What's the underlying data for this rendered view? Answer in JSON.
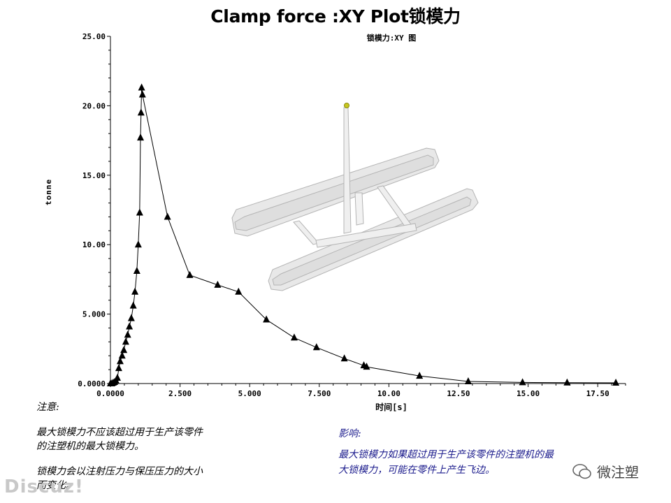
{
  "title": "Clamp force :XY Plot锁模力",
  "chart_data": {
    "type": "line",
    "subtitle": "锁模力:XY 图",
    "xlabel": "时间[s]",
    "ylabel": "tonne",
    "xlim": [
      0,
      18.5
    ],
    "ylim": [
      0,
      25
    ],
    "x_ticks": [
      0,
      2.5,
      5,
      7.5,
      10,
      12.5,
      15,
      17.5
    ],
    "x_tick_labels": [
      "0.0000",
      "2.500",
      "5.000",
      "7.500",
      "10.00",
      "12.50",
      "15.00",
      "17.50"
    ],
    "y_ticks": [
      0,
      5,
      10,
      15,
      20,
      25
    ],
    "y_tick_labels": [
      "0.0000",
      "5.000",
      "10.00",
      "15.00",
      "20.00",
      "25.00"
    ],
    "grid": false,
    "series": [
      {
        "marker": "triangle",
        "x": [
          0.0,
          0.05,
          0.1,
          0.15,
          0.2,
          0.25,
          0.3,
          0.35,
          0.42,
          0.48,
          0.55,
          0.62,
          0.68,
          0.75,
          0.82,
          0.88,
          0.95,
          1.0,
          1.05,
          1.08,
          1.1,
          1.12,
          1.15,
          2.05,
          2.85,
          3.85,
          4.6,
          5.6,
          6.6,
          7.4,
          8.4,
          9.1,
          9.2,
          11.1,
          12.85,
          14.8,
          16.4,
          18.15
        ],
        "y": [
          0.0,
          0.0,
          0.05,
          0.1,
          0.2,
          0.4,
          1.1,
          1.6,
          2.0,
          2.4,
          3.0,
          3.5,
          4.1,
          4.7,
          5.6,
          6.6,
          8.1,
          10.0,
          12.3,
          17.7,
          19.5,
          21.3,
          20.8,
          12.0,
          7.8,
          7.1,
          6.6,
          4.6,
          3.3,
          2.6,
          1.8,
          1.3,
          1.2,
          0.55,
          0.15,
          0.08,
          0.06,
          0.05
        ]
      }
    ]
  },
  "notes": {
    "left_heading": "注意:",
    "left_line1": "最大锁模力不应该超过用于生产该零件",
    "left_line2": "的注塑机的最大锁模力。",
    "left_line3": "锁模力会以注射压力与保压压力的大小",
    "left_line4": "而变化。",
    "right_heading": "影响:",
    "right_line1": "最大锁模力如果超过用于生产该零件的注塑机的最",
    "right_line2": "大锁模力，可能在零件上产生飞边。"
  },
  "watermarks": {
    "left": "Discuz!",
    "right": "微注塑"
  },
  "colors": {
    "line": "#000000",
    "note_blue": "#1a1a8c",
    "part_fill": "#e6e6e6",
    "part_stroke": "#b4b4b4"
  }
}
